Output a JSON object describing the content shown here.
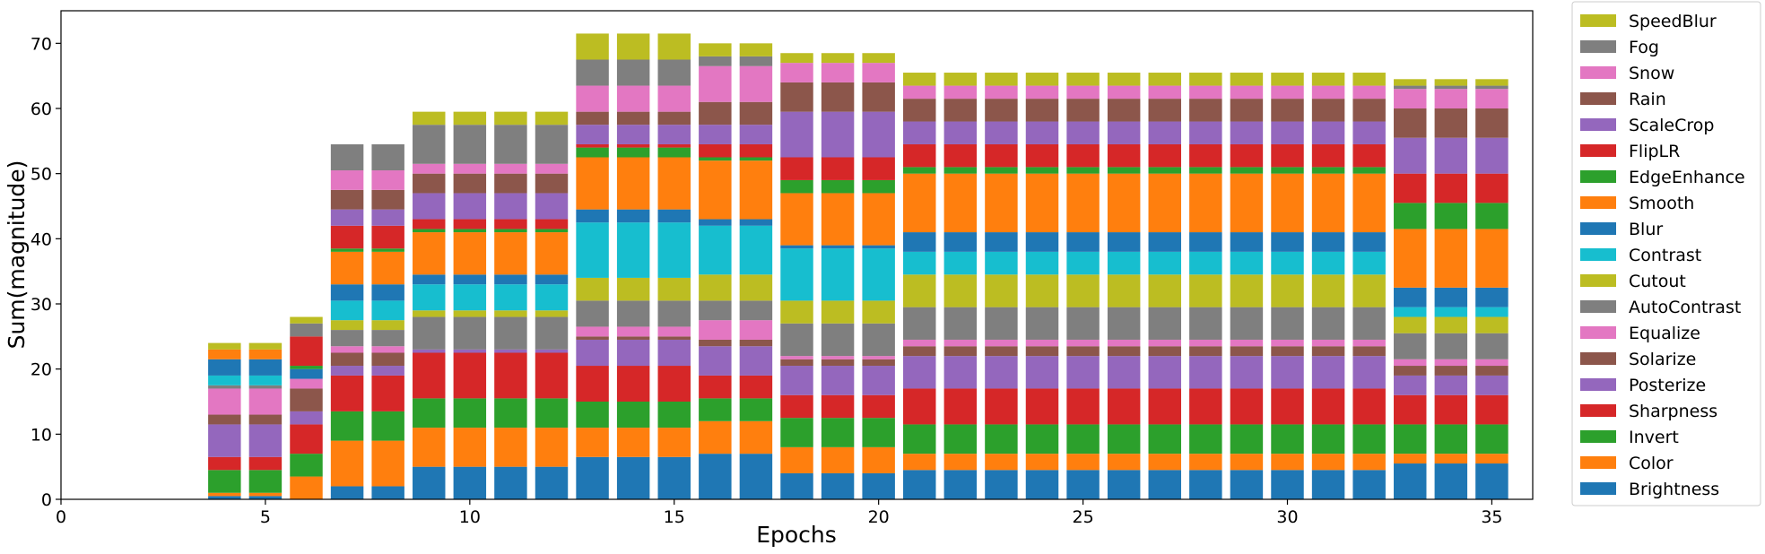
{
  "chart_data": {
    "type": "bar",
    "stacked": true,
    "xlabel": "Epochs",
    "ylabel": "Sum(magnitude)",
    "xlim": [
      0,
      36
    ],
    "ylim": [
      0,
      75
    ],
    "x_ticks": [
      0,
      5,
      10,
      15,
      20,
      25,
      30,
      35
    ],
    "y_ticks": [
      0,
      10,
      20,
      30,
      40,
      50,
      60,
      70
    ],
    "legend_position": "right, outside plot",
    "epochs": [
      4,
      5,
      6,
      7,
      8,
      9,
      10,
      11,
      12,
      13,
      14,
      15,
      16,
      17,
      18,
      19,
      20,
      21,
      22,
      23,
      24,
      25,
      26,
      27,
      28,
      29,
      30,
      31,
      32,
      33,
      34,
      35
    ],
    "series": [
      {
        "name": "Brightness",
        "color": "#1f77b4",
        "values": [
          0.5,
          0.5,
          0,
          2,
          2,
          5,
          5,
          5,
          5,
          6.5,
          6.5,
          6.5,
          7,
          7,
          4,
          4,
          4,
          4.5,
          4.5,
          4.5,
          4.5,
          4.5,
          4.5,
          4.5,
          4.5,
          4.5,
          4.5,
          4.5,
          4.5,
          5.5,
          5.5,
          5.5
        ]
      },
      {
        "name": "Color",
        "color": "#ff7f0e",
        "values": [
          0.5,
          0.5,
          3.5,
          7,
          7,
          6,
          6,
          6,
          6,
          4.5,
          4.5,
          4.5,
          5,
          5,
          4,
          4,
          4,
          2.5,
          2.5,
          2.5,
          2.5,
          2.5,
          2.5,
          2.5,
          2.5,
          2.5,
          2.5,
          2.5,
          2.5,
          1.5,
          1.5,
          1.5
        ]
      },
      {
        "name": "Invert",
        "color": "#2ca02c",
        "values": [
          3.5,
          3.5,
          3.5,
          4.5,
          4.5,
          4.5,
          4.5,
          4.5,
          4.5,
          4,
          4,
          4,
          3.5,
          3.5,
          4.5,
          4.5,
          4.5,
          4.5,
          4.5,
          4.5,
          4.5,
          4.5,
          4.5,
          4.5,
          4.5,
          4.5,
          4.5,
          4.5,
          4.5,
          4.5,
          4.5,
          4.5
        ]
      },
      {
        "name": "Sharpness",
        "color": "#d62728",
        "values": [
          2,
          2,
          4.5,
          5.5,
          5.5,
          7,
          7,
          7,
          7,
          5.5,
          5.5,
          5.5,
          3.5,
          3.5,
          3.5,
          3.5,
          3.5,
          5.5,
          5.5,
          5.5,
          5.5,
          5.5,
          5.5,
          5.5,
          5.5,
          5.5,
          5.5,
          5.5,
          5.5,
          4.5,
          4.5,
          4.5
        ]
      },
      {
        "name": "Posterize",
        "color": "#9467bd",
        "values": [
          5,
          5,
          2,
          1.5,
          1.5,
          0.5,
          0.5,
          0.5,
          0.5,
          4,
          4,
          4,
          4.5,
          4.5,
          4.5,
          4.5,
          4.5,
          5,
          5,
          5,
          5,
          5,
          5,
          5,
          5,
          5,
          5,
          5,
          5,
          3,
          3,
          3
        ]
      },
      {
        "name": "Solarize",
        "color": "#8c564b",
        "values": [
          1.5,
          1.5,
          3.5,
          2,
          2,
          0,
          0,
          0,
          0,
          0.5,
          0.5,
          0.5,
          1,
          1,
          1,
          1,
          1,
          1.5,
          1.5,
          1.5,
          1.5,
          1.5,
          1.5,
          1.5,
          1.5,
          1.5,
          1.5,
          1.5,
          1.5,
          1.5,
          1.5,
          1.5
        ]
      },
      {
        "name": "Equalize",
        "color": "#e377c2",
        "values": [
          4,
          4,
          1.5,
          1,
          1,
          0,
          0,
          0,
          0,
          1.5,
          1.5,
          1.5,
          3,
          3,
          0.5,
          0.5,
          0.5,
          1,
          1,
          1,
          1,
          1,
          1,
          1,
          1,
          1,
          1,
          1,
          1,
          1,
          1,
          1
        ]
      },
      {
        "name": "AutoContrast",
        "color": "#7f7f7f",
        "values": [
          0.5,
          0.5,
          0,
          2.5,
          2.5,
          5,
          5,
          5,
          5,
          4,
          4,
          4,
          3,
          3,
          5,
          5,
          5,
          5,
          5,
          5,
          5,
          5,
          5,
          5,
          5,
          5,
          5,
          5,
          5,
          4,
          4,
          4
        ]
      },
      {
        "name": "Cutout",
        "color": "#bcbd22",
        "values": [
          0,
          0,
          0,
          1.5,
          1.5,
          1,
          1,
          1,
          1,
          3.5,
          3.5,
          3.5,
          4,
          4,
          3.5,
          3.5,
          3.5,
          5,
          5,
          5,
          5,
          5,
          5,
          5,
          5,
          5,
          5,
          5,
          5,
          2.5,
          2.5,
          2.5
        ]
      },
      {
        "name": "Contrast",
        "color": "#17becf",
        "values": [
          1.5,
          1.5,
          0,
          3,
          3,
          4,
          4,
          4,
          4,
          8.5,
          8.5,
          8.5,
          7.5,
          7.5,
          8,
          8,
          8,
          3.5,
          3.5,
          3.5,
          3.5,
          3.5,
          3.5,
          3.5,
          3.5,
          3.5,
          3.5,
          3.5,
          3.5,
          1.5,
          1.5,
          1.5
        ]
      },
      {
        "name": "Blur",
        "color": "#1f77b4",
        "values": [
          2.5,
          2.5,
          1.5,
          2.5,
          2.5,
          1.5,
          1.5,
          1.5,
          1.5,
          2,
          2,
          2,
          1,
          1,
          0.5,
          0.5,
          0.5,
          3,
          3,
          3,
          3,
          3,
          3,
          3,
          3,
          3,
          3,
          3,
          3,
          3,
          3,
          3
        ]
      },
      {
        "name": "Smooth",
        "color": "#ff7f0e",
        "values": [
          1.5,
          1.5,
          0,
          5,
          5,
          6.5,
          6.5,
          6.5,
          6.5,
          8,
          8,
          8,
          9,
          9,
          8,
          8,
          8,
          9,
          9,
          9,
          9,
          9,
          9,
          9,
          9,
          9,
          9,
          9,
          9,
          9,
          9,
          9
        ]
      },
      {
        "name": "EdgeEnhance",
        "color": "#2ca02c",
        "values": [
          0,
          0,
          0.5,
          0.5,
          0.5,
          0.5,
          0.5,
          0.5,
          0.5,
          1.5,
          1.5,
          1.5,
          0.5,
          0.5,
          2,
          2,
          2,
          1,
          1,
          1,
          1,
          1,
          1,
          1,
          1,
          1,
          1,
          1,
          1,
          4,
          4,
          4
        ]
      },
      {
        "name": "FlipLR",
        "color": "#d62728",
        "values": [
          0,
          0,
          4.5,
          3.5,
          3.5,
          1.5,
          1.5,
          1.5,
          1.5,
          0.5,
          0.5,
          0.5,
          2,
          2,
          3.5,
          3.5,
          3.5,
          3.5,
          3.5,
          3.5,
          3.5,
          3.5,
          3.5,
          3.5,
          3.5,
          3.5,
          3.5,
          3.5,
          3.5,
          4.5,
          4.5,
          4.5
        ]
      },
      {
        "name": "ScaleCrop",
        "color": "#9467bd",
        "values": [
          0,
          0,
          0,
          2.5,
          2.5,
          4,
          4,
          4,
          4,
          3,
          3,
          3,
          3,
          3,
          7,
          7,
          7,
          3.5,
          3.5,
          3.5,
          3.5,
          3.5,
          3.5,
          3.5,
          3.5,
          3.5,
          3.5,
          3.5,
          3.5,
          5.5,
          5.5,
          5.5
        ]
      },
      {
        "name": "Rain",
        "color": "#8c564b",
        "values": [
          0,
          0,
          0,
          3,
          3,
          3,
          3,
          3,
          3,
          2,
          2,
          2,
          3.5,
          3.5,
          4.5,
          4.5,
          4.5,
          3.5,
          3.5,
          3.5,
          3.5,
          3.5,
          3.5,
          3.5,
          3.5,
          3.5,
          3.5,
          3.5,
          3.5,
          4.5,
          4.5,
          4.5
        ]
      },
      {
        "name": "Snow",
        "color": "#e377c2",
        "values": [
          0,
          0,
          0,
          3,
          3,
          1.5,
          1.5,
          1.5,
          1.5,
          4,
          4,
          4,
          5.5,
          5.5,
          3,
          3,
          3,
          2,
          2,
          2,
          2,
          2,
          2,
          2,
          2,
          2,
          2,
          2,
          2,
          3,
          3,
          3
        ]
      },
      {
        "name": "Fog",
        "color": "#7f7f7f",
        "values": [
          0,
          0,
          2,
          4,
          4,
          6,
          6,
          6,
          6,
          4,
          4,
          4,
          1.5,
          1.5,
          0,
          0,
          0,
          0,
          0,
          0,
          0,
          0,
          0,
          0,
          0,
          0,
          0,
          0,
          0,
          0.5,
          0.5,
          0.5
        ]
      },
      {
        "name": "SpeedBlur",
        "color": "#bcbd22",
        "values": [
          1,
          1,
          1,
          0,
          0,
          2,
          2,
          2,
          2,
          4,
          4,
          4,
          2,
          2,
          1.5,
          1.5,
          1.5,
          2,
          2,
          2,
          2,
          2,
          2,
          2,
          2,
          2,
          2,
          2,
          2,
          1,
          1,
          1
        ]
      }
    ]
  }
}
